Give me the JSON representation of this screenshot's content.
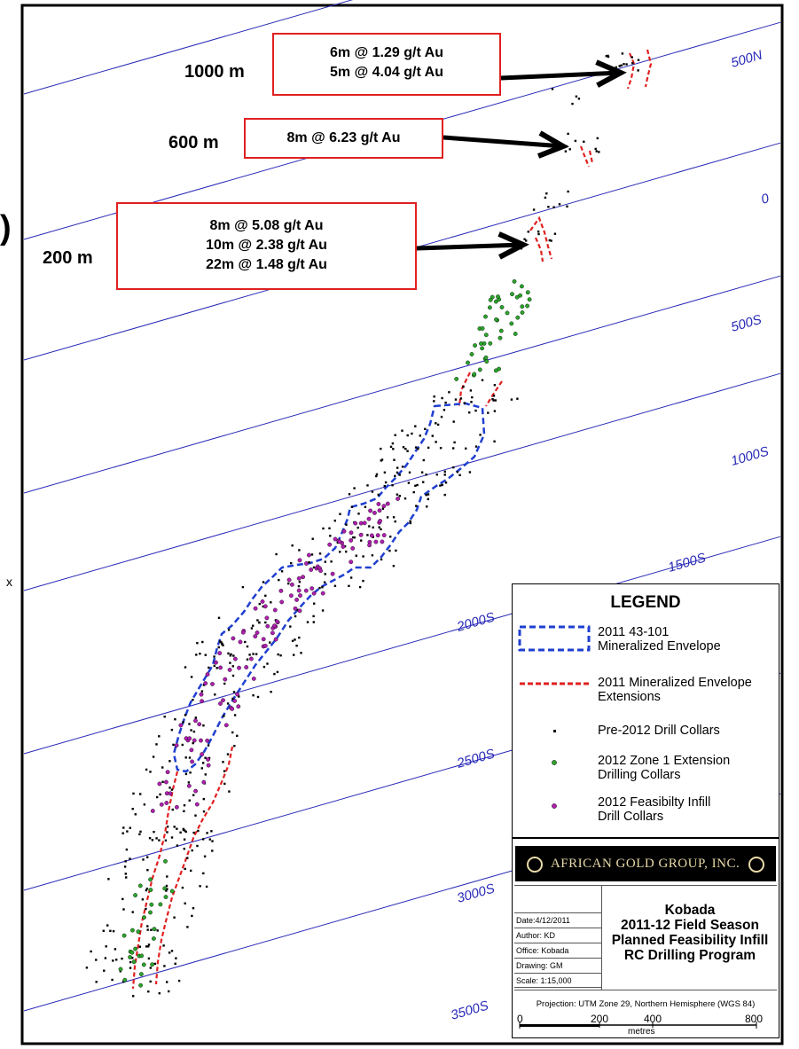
{
  "map": {
    "northing_labels": [
      "500N",
      "0",
      "500S",
      "1000S",
      "1500S",
      "2000S",
      "2500S",
      "3000S",
      "3500S"
    ],
    "colors": {
      "grid_line": "#2a2ab8",
      "grid_label": "#2a2ab8",
      "envelope_2011": "#1f3fd0",
      "extension_2011": "#e02020",
      "pre2012_collar": "#000000",
      "zone1_collar": "#2aa52a",
      "infill_collar": "#b01fb0",
      "callout_border": "#e02020"
    }
  },
  "intercepts": [
    {
      "depth": "1000 m",
      "lines": [
        "6m @ 1.29 g/t Au",
        "5m @ 4.04 g/t Au"
      ]
    },
    {
      "depth": "600 m",
      "lines": [
        "8m @ 6.23 g/t Au"
      ]
    },
    {
      "depth": "200 m",
      "lines": [
        "8m @  5.08 g/t Au",
        "10m @ 2.38 g/t Au",
        "22m @ 1.48 g/t Au"
      ]
    }
  ],
  "edge_fragments": [
    ")",
    "x"
  ],
  "legend": {
    "title": "LEGEND",
    "items": [
      {
        "label": "2011 43-101\nMineralized Envelope",
        "symbol": "blue-dashed-box"
      },
      {
        "label": "2011 Mineralized Envelope\nExtensions",
        "symbol": "red-dashed-line"
      },
      {
        "label": "Pre-2012 Drill Collars",
        "symbol": "black-dot"
      },
      {
        "label": "2012 Zone 1 Extension\nDrilling Collars",
        "symbol": "green-dot"
      },
      {
        "label": "2012 Feasibilty Infill\nDrill Collars",
        "symbol": "magenta-dot"
      }
    ]
  },
  "title_block": {
    "company": "AFRICAN GOLD GROUP, INC.",
    "meta": [
      "Date:4/12/2011",
      "Author: KD",
      "Office: Kobada",
      "Drawing: GM",
      "Scale: 1:15,000"
    ],
    "title_lines": [
      "Kobada",
      "2011-12 Field Season",
      "Planned Feasibility Infill",
      "RC Drilling Program"
    ],
    "projection": "Projection: UTM Zone 29, Northern Hemisphere (WGS 84)",
    "scale_ticks": [
      "0",
      "200",
      "400",
      "800"
    ],
    "scale_unit": "metres"
  }
}
